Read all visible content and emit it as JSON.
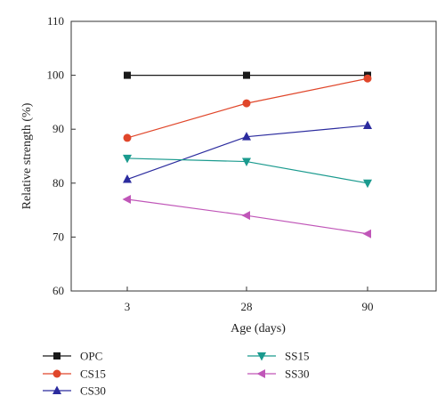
{
  "chart_data": {
    "type": "line",
    "categories": [
      "3",
      "28",
      "90"
    ],
    "xlabel": "Age (days)",
    "ylabel": "Relative strength (%)",
    "ylim": [
      60,
      110
    ],
    "yticks": [
      "60",
      "70",
      "80",
      "90",
      "100",
      "110"
    ],
    "grid": false,
    "legend_position": "bottom",
    "series": [
      {
        "name": "OPC",
        "values": [
          100,
          100,
          100
        ],
        "color": "#1a1a1a",
        "marker": "square"
      },
      {
        "name": "CS15",
        "values": [
          88.4,
          94.8,
          99.4
        ],
        "color": "#e0462a",
        "marker": "circle"
      },
      {
        "name": "CS30",
        "values": [
          80.7,
          88.6,
          90.7
        ],
        "color": "#2b2b9e",
        "marker": "triangle-up"
      },
      {
        "name": "SS15",
        "values": [
          84.6,
          84.0,
          80.0
        ],
        "color": "#1a9a8e",
        "marker": "triangle-down"
      },
      {
        "name": "SS30",
        "values": [
          77.0,
          74.0,
          70.6
        ],
        "color": "#c056b8",
        "marker": "triangle-left"
      }
    ]
  }
}
